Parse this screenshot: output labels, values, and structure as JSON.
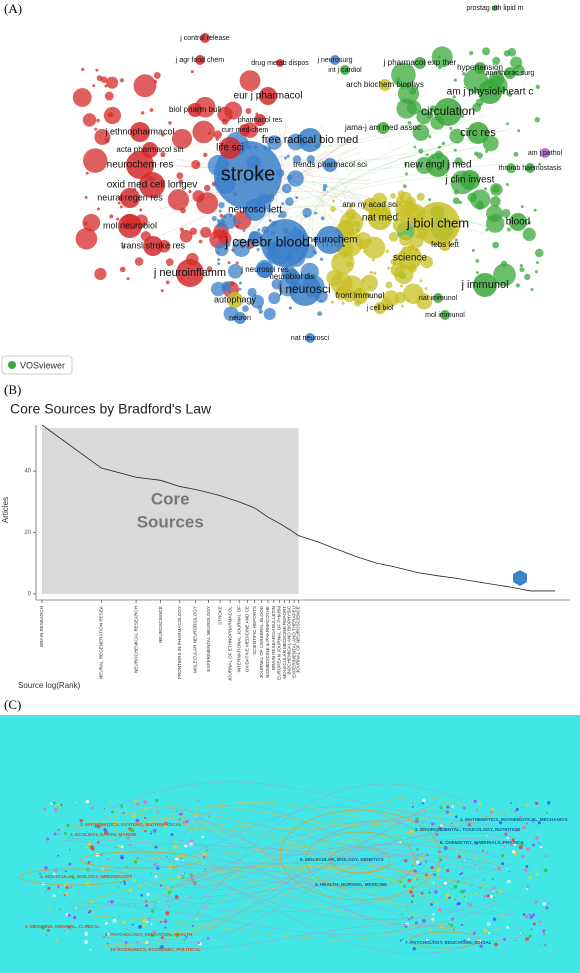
{
  "panel_labels": [
    "(A)",
    "(B)",
    "(C)"
  ],
  "network": {
    "logo": "VOSviewer",
    "nodes": [
      {
        "label": "stroke",
        "color": "#3a7fc9"
      },
      {
        "label": "j cerebr blood f met",
        "color": "#3a7fc9"
      },
      {
        "label": "free radical bio med",
        "color": "#3a7fc9"
      },
      {
        "label": "circulation",
        "color": "#3aa83a"
      },
      {
        "label": "j biol chem",
        "color": "#c8c024"
      },
      {
        "label": "j neurochem",
        "color": "#3a7fc9"
      },
      {
        "label": "j neurosci",
        "color": "#3a7fc9"
      },
      {
        "label": "neurochem res",
        "color": "#d42a2a"
      },
      {
        "label": "oxid med cell longev",
        "color": "#d42a2a"
      },
      {
        "label": "neural regen res",
        "color": "#d42a2a"
      },
      {
        "label": "mol neurobiol",
        "color": "#d42a2a"
      },
      {
        "label": "j neuroinflamm",
        "color": "#d42a2a"
      },
      {
        "label": "transl stroke res",
        "color": "#d42a2a"
      },
      {
        "label": "neurosci lett",
        "color": "#3a7fc9"
      },
      {
        "label": "life sci",
        "color": "#d42a2a"
      },
      {
        "label": "eur j pharmacol",
        "color": "#d42a2a"
      },
      {
        "label": "j ethnopharmacol",
        "color": "#d42a2a"
      },
      {
        "label": "acta pharmacol sin",
        "color": "#d42a2a"
      },
      {
        "label": "am j physiol-heart c",
        "color": "#3aa83a"
      },
      {
        "label": "circ res",
        "color": "#3aa83a"
      },
      {
        "label": "new engl j med",
        "color": "#3aa83a"
      },
      {
        "label": "j clin invest",
        "color": "#3aa83a"
      },
      {
        "label": "nat med",
        "color": "#c8c024"
      },
      {
        "label": "science",
        "color": "#c8c024"
      },
      {
        "label": "j immunol",
        "color": "#3aa83a"
      },
      {
        "label": "blood",
        "color": "#3aa83a"
      },
      {
        "label": "autophagy",
        "color": "#c8c024"
      },
      {
        "label": "neurobiol dis",
        "color": "#3a7fc9"
      },
      {
        "label": "j neurosci res",
        "color": "#3a7fc9"
      },
      {
        "label": "front immunol",
        "color": "#c8c024"
      },
      {
        "label": "hypertension",
        "color": "#3aa83a"
      },
      {
        "label": "ann thorac surg",
        "color": "#3aa83a"
      },
      {
        "label": "am j pathol",
        "color": "#a060d0"
      },
      {
        "label": "thromb haemostasis",
        "color": "#3aa83a"
      },
      {
        "label": "febs lett",
        "color": "#c8c024"
      },
      {
        "label": "nat immunol",
        "color": "#3aa83a"
      },
      {
        "label": "mol immunol",
        "color": "#3aa83a"
      },
      {
        "label": "j cell biol",
        "color": "#c8c024"
      },
      {
        "label": "nat neurosci",
        "color": "#3a7fc9"
      },
      {
        "label": "neuron",
        "color": "#3a7fc9"
      },
      {
        "label": "trends pharmacol sci",
        "color": "#3a7fc9"
      },
      {
        "label": "ann ny acad sci",
        "color": "#c8c024"
      },
      {
        "label": "jama-j am med assoc",
        "color": "#3aa83a"
      },
      {
        "label": "arch biochem biophys",
        "color": "#c8c024"
      },
      {
        "label": "j pharmacol exp ther",
        "color": "#3aa83a"
      },
      {
        "label": "biol pharm bull",
        "color": "#d42a2a"
      },
      {
        "label": "curr med chem",
        "color": "#d42a2a"
      },
      {
        "label": "pharmacol res",
        "color": "#d42a2a"
      },
      {
        "label": "j agr food chem",
        "color": "#d42a2a"
      },
      {
        "label": "j control release",
        "color": "#d42a2a"
      },
      {
        "label": "j neurosurg",
        "color": "#3a7fc9"
      },
      {
        "label": "int j cardiol",
        "color": "#3aa83a"
      },
      {
        "label": "prostag oth lipid m",
        "color": "#3aa83a"
      },
      {
        "label": "drug metab dispos",
        "color": "#d42a2a"
      }
    ]
  },
  "chart_data": {
    "type": "line",
    "title": "Core Sources by Bradford's Law",
    "y_label": "Articles",
    "x_label": "Source log(Rank)",
    "annotation": [
      "Core",
      "Sources"
    ],
    "x": [
      1,
      2,
      3,
      4,
      5,
      6,
      7,
      8,
      10,
      12,
      14,
      16,
      18,
      20,
      25,
      30,
      40,
      50,
      60,
      80,
      100,
      130,
      160,
      200,
      250,
      300,
      400
    ],
    "values": [
      55,
      41,
      38,
      37,
      35,
      34,
      33,
      32,
      30,
      28,
      25,
      23,
      21,
      19,
      17,
      15,
      12,
      10,
      9,
      7,
      6,
      5,
      4,
      3,
      2,
      1,
      1
    ],
    "color": "#222222",
    "xscale": "log",
    "xlim": [
      1,
      400
    ],
    "ylim": [
      0,
      55
    ],
    "yticks": [
      0,
      20,
      40
    ],
    "core_zone_end": 20,
    "core_zone_color": "#d9d9d9",
    "grid": false,
    "xticks": [
      {
        "value": 1,
        "label": "BRAIN RESEARCH"
      },
      {
        "value": 2,
        "label": "NEURAL REGENERATION RESEA"
      },
      {
        "value": 3,
        "label": "NEUROCHEMICAL RESEARCH"
      },
      {
        "value": 4,
        "label": "NEUROSCIENCE"
      },
      {
        "value": 5,
        "label": "FRONTIERS IN PHARMACOLOGY"
      },
      {
        "value": 6,
        "label": "MOLECULAR NEUROBIOLOGY"
      },
      {
        "value": 7,
        "label": "EXPERIMENTAL NEUROLOGY"
      },
      {
        "value": 8,
        "label": "STROKE"
      },
      {
        "value": 9,
        "label": "JOURNAL OF ETHNOPHARMACOL"
      },
      {
        "value": 10,
        "label": "INTERNATIONAL JOURNAL OF"
      },
      {
        "value": 11,
        "label": "OXIDATIVE MEDICINE AND CE"
      },
      {
        "value": 12,
        "label": "SCIENTIFIC REPORTS"
      },
      {
        "value": 13,
        "label": "JOURNAL OF CEREBRAL BLOOD"
      },
      {
        "value": 14,
        "label": "BIOMEDICINE & PHARMACOTHE"
      },
      {
        "value": 15,
        "label": "BRAIN RESEARCH BULLETIN"
      },
      {
        "value": 16,
        "label": "EUROPEAN JOURNAL OF PHARM"
      },
      {
        "value": 17,
        "label": "MOLECULAR MEDICINE REPORT"
      },
      {
        "value": 18,
        "label": "BIOCHEMICAL AND BIOPHYSIC"
      },
      {
        "value": 19,
        "label": "EXPERIMENTAL AND THERAPEU"
      },
      {
        "value": 20,
        "label": "JOURNAL OF NEUROSCIENCE"
      }
    ]
  },
  "dual_map": {
    "background": "#43e6e6",
    "left_labels": [
      "1. MATHEMATICS, SYSTEMS, MATHEMATICAL",
      "3. ECOLOGY, EARTH, MARINE",
      "4. MOLECULAR, BIOLOGY, IMMUNOLOGY",
      "2. MEDICINE, MEDICAL, CLINICAL",
      "6. PSYCHOLOGY, EDUCATION, HEALTH",
      "10. ECONOMICS, ECONOMIC, POLITICAL"
    ],
    "right_labels": [
      "1. MATHEMATICS, MATHEMATICAL, MECHANICS",
      "2. ENVIRONMENTAL, TOXICOLOGY, NUTRITION",
      "5. CHEMISTRY, MATERIALS, PHYSICS",
      "8. MOLECULAR, BIOLOGY, GENETICS",
      "5. HEALTH, NURSING, MEDICINE",
      "7. PSYCHOLOGY, EDUCATION, SOCIAL"
    ]
  }
}
